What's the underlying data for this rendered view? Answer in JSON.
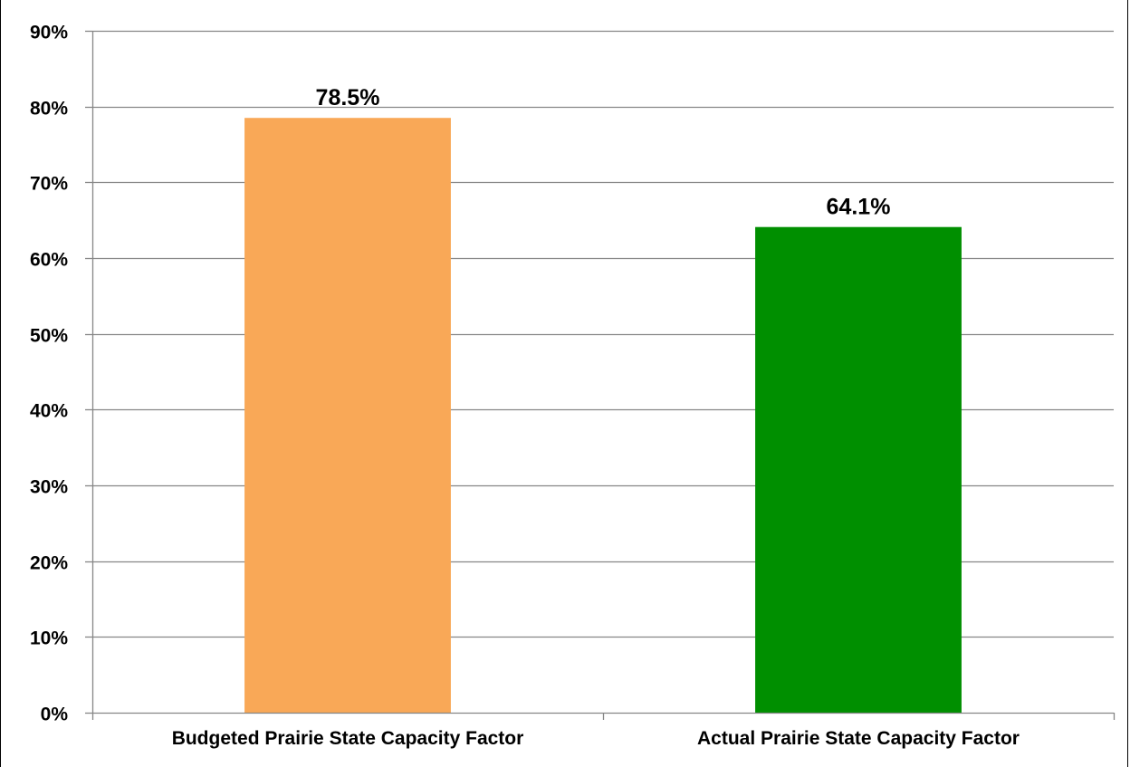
{
  "chart_data": {
    "type": "bar",
    "title": "",
    "xlabel": "",
    "ylabel": "",
    "categories": [
      "Budgeted Prairie State Capacity Factor",
      "Actual Prairie State Capacity Factor"
    ],
    "values": [
      78.5,
      64.1
    ],
    "data_labels": [
      "78.5%",
      "64.1%"
    ],
    "bar_colors": [
      "#F9A857",
      "#008F00"
    ],
    "ylim": [
      0,
      90
    ],
    "yticks": [
      0,
      10,
      20,
      30,
      40,
      50,
      60,
      70,
      80,
      90
    ],
    "ytick_labels": [
      "0%",
      "10%",
      "20%",
      "30%",
      "40%",
      "50%",
      "60%",
      "70%",
      "80%",
      "90%"
    ],
    "grid": true,
    "grid_color": "#868686",
    "legend": "none"
  }
}
